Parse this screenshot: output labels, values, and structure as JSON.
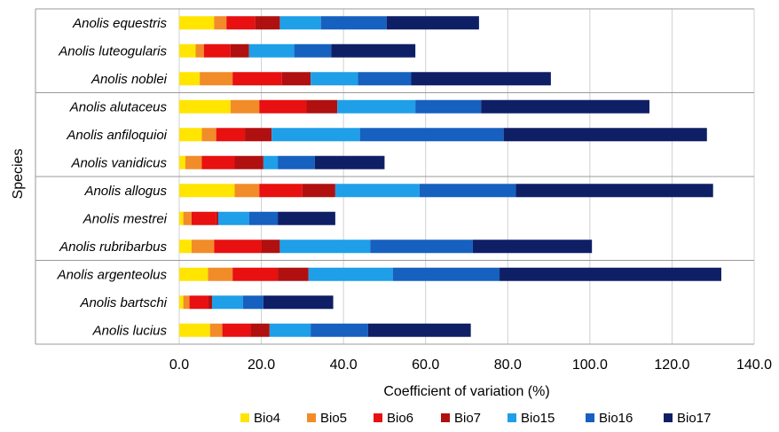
{
  "chart_data": {
    "type": "bar",
    "orientation": "horizontal",
    "stacked": true,
    "categories": [
      "Anolis equestris",
      "Anolis luteogularis",
      "Anolis noblei",
      "Anolis alutaceus",
      "Anolis anfiloquioi",
      "Anolis vanidicus",
      "Anolis allogus",
      "Anolis mestrei",
      "Anolis rubribarbus",
      "Anolis argenteolus",
      "Anolis bartschi",
      "Anolis lucius"
    ],
    "series": [
      {
        "name": "Bio4",
        "color": "#FFE500",
        "values": [
          8.5,
          4.0,
          5.0,
          12.5,
          5.5,
          1.5,
          13.5,
          1.0,
          3.0,
          7.0,
          1.0,
          7.5
        ]
      },
      {
        "name": "Bio5",
        "color": "#F28C28",
        "values": [
          3.0,
          2.0,
          8.0,
          7.0,
          3.5,
          4.0,
          6.0,
          2.0,
          5.5,
          6.0,
          1.5,
          3.0
        ]
      },
      {
        "name": "Bio6",
        "color": "#E81010",
        "values": [
          7.0,
          6.5,
          12.0,
          11.5,
          7.0,
          8.0,
          10.5,
          6.0,
          11.5,
          11.0,
          4.5,
          7.0
        ]
      },
      {
        "name": "Bio7",
        "color": "#B01010",
        "values": [
          6.0,
          4.5,
          7.0,
          7.5,
          6.5,
          7.0,
          8.0,
          0.5,
          4.5,
          7.5,
          1.0,
          4.5
        ]
      },
      {
        "name": "Bio15",
        "color": "#1E9FE8",
        "values": [
          10.0,
          11.0,
          11.5,
          19.0,
          21.5,
          3.5,
          20.5,
          7.5,
          22.0,
          20.5,
          7.5,
          10.0
        ]
      },
      {
        "name": "Bio16",
        "color": "#1660C0",
        "values": [
          16.0,
          9.0,
          13.0,
          16.0,
          35.0,
          9.0,
          23.5,
          7.0,
          25.0,
          26.0,
          5.0,
          14.0
        ]
      },
      {
        "name": "Bio17",
        "color": "#0E1F66",
        "values": [
          22.5,
          20.5,
          34.0,
          41.0,
          49.5,
          17.0,
          48.0,
          14.0,
          29.0,
          54.0,
          17.0,
          25.0
        ]
      }
    ],
    "group_separators_after": [
      2,
      5,
      8
    ],
    "xlabel": "Coefficient of variation (%)",
    "ylabel": "Species",
    "xlim": [
      0,
      140
    ],
    "xticks": [
      "0.0",
      "20.0",
      "40.0",
      "60.0",
      "80.0",
      "100.0",
      "120.0",
      "140.0"
    ],
    "grid": "vertical",
    "legend_position": "bottom"
  }
}
